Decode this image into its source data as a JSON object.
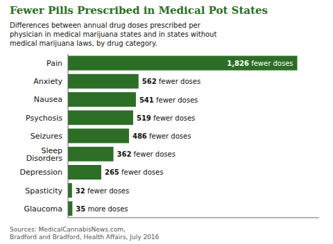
{
  "chart_data": {
    "type": "bar",
    "orientation": "horizontal",
    "title": "Fewer Pills Prescribed in Medical Pot States",
    "subtitle": "Differences between annual drug doses prescribed per\nphysician in medical marijuana states and in states without\nmedical marijuana laws, by drug category.",
    "annotations": [
      "Sources: MedicalCannabisNews.com,\nBradford and Bradford, Health Affairs, July 2016"
    ],
    "categories": [
      "Pain",
      "Anxiety",
      "Nausea",
      "Psychosis",
      "Seizures",
      "Sleep Disorders",
      "Depression",
      "Spasticity",
      "Glaucoma"
    ],
    "values": [
      1826,
      562,
      541,
      519,
      486,
      362,
      265,
      32,
      35
    ],
    "value_labels": [
      "1,826 fewer doses",
      "562 fewer doses",
      "541 fewer doses",
      "519 fewer doses",
      "486 fewer doses",
      "362 fewer doses",
      "265 fewer doses",
      "32 fewer doses",
      "35 more doses"
    ],
    "data_labels": true,
    "color": "#2d6e27",
    "xlim": [
      0,
      2000
    ],
    "grid": false,
    "tick_labels": "y"
  }
}
